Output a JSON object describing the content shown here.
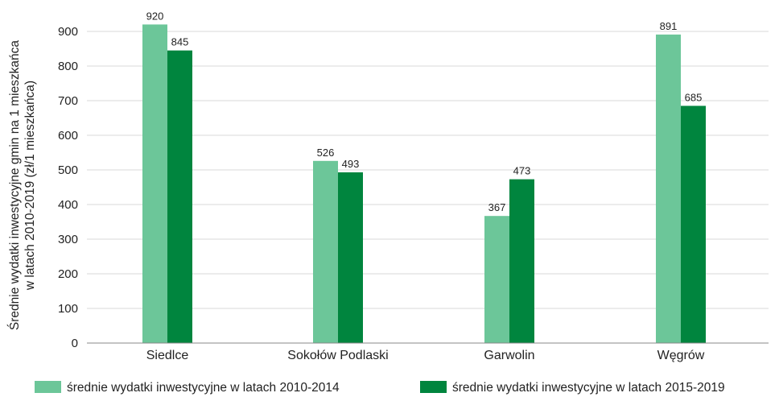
{
  "chart_data": {
    "type": "bar",
    "categories": [
      "Siedlce",
      "Sokołów Podlaski",
      "Garwolin",
      "Węgrów"
    ],
    "series": [
      {
        "name": "średnie wydatki inwestycyjne w latach 2010-2014",
        "values": [
          920,
          526,
          367,
          891
        ],
        "color": "#6cc699"
      },
      {
        "name": "średnie wydatki inwestycyjne w latach 2015-2019",
        "values": [
          845,
          493,
          473,
          685
        ],
        "color": "#00853e"
      }
    ],
    "ylabel_line1": "Średnie wydatki inwestycyjne gmin na 1 mieszkańca",
    "ylabel_line2": "w latach 2010-2019 (zł/1 mieszkańca)",
    "ylim": [
      0,
      900
    ],
    "yticks": [
      0,
      100,
      200,
      300,
      400,
      500,
      600,
      700,
      800,
      900
    ],
    "grid": true,
    "grid_color": "#d9d9d9",
    "axis_color": "#888888",
    "legend_placement": "bottom",
    "data_labels": true
  }
}
